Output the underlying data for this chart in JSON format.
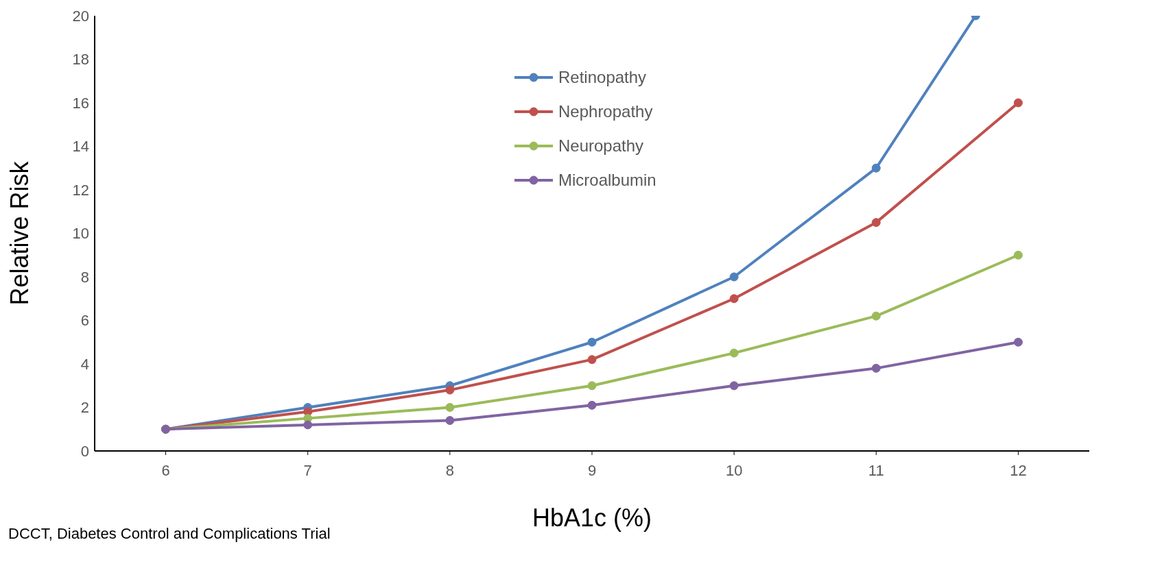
{
  "chart_data": {
    "type": "line",
    "xlabel": "HbA1c (%)",
    "ylabel": "Relative Risk",
    "x": [
      6,
      7,
      8,
      9,
      10,
      11,
      12
    ],
    "series": [
      {
        "name": "Retinopathy",
        "color": "#4f81bd",
        "x": [
          6,
          7,
          8,
          9,
          10,
          11,
          11.7
        ],
        "values": [
          1,
          2,
          3,
          5,
          8,
          13,
          20
        ]
      },
      {
        "name": "Nephropathy",
        "color": "#c0504d",
        "values": [
          1,
          1.8,
          2.8,
          4.2,
          7,
          10.5,
          16
        ]
      },
      {
        "name": "Neuropathy",
        "color": "#9bbb59",
        "values": [
          1,
          1.5,
          2,
          3,
          4.5,
          6.2,
          9
        ]
      },
      {
        "name": "Microalbumin",
        "color": "#8064a2",
        "values": [
          1,
          1.2,
          1.4,
          2.1,
          3,
          3.8,
          5
        ]
      }
    ],
    "xlim": [
      5.5,
      12.5
    ],
    "xticks": [
      6,
      7,
      8,
      9,
      10,
      11,
      12
    ],
    "ylim": [
      0,
      20
    ],
    "yticks": [
      0,
      2,
      4,
      6,
      8,
      10,
      12,
      14,
      16,
      18,
      20
    ],
    "grid": false,
    "legend": "top",
    "marker": "circle",
    "line_style": "solid",
    "annotations": [
      "DCCT, Diabetes Control and Complications Trial"
    ]
  }
}
